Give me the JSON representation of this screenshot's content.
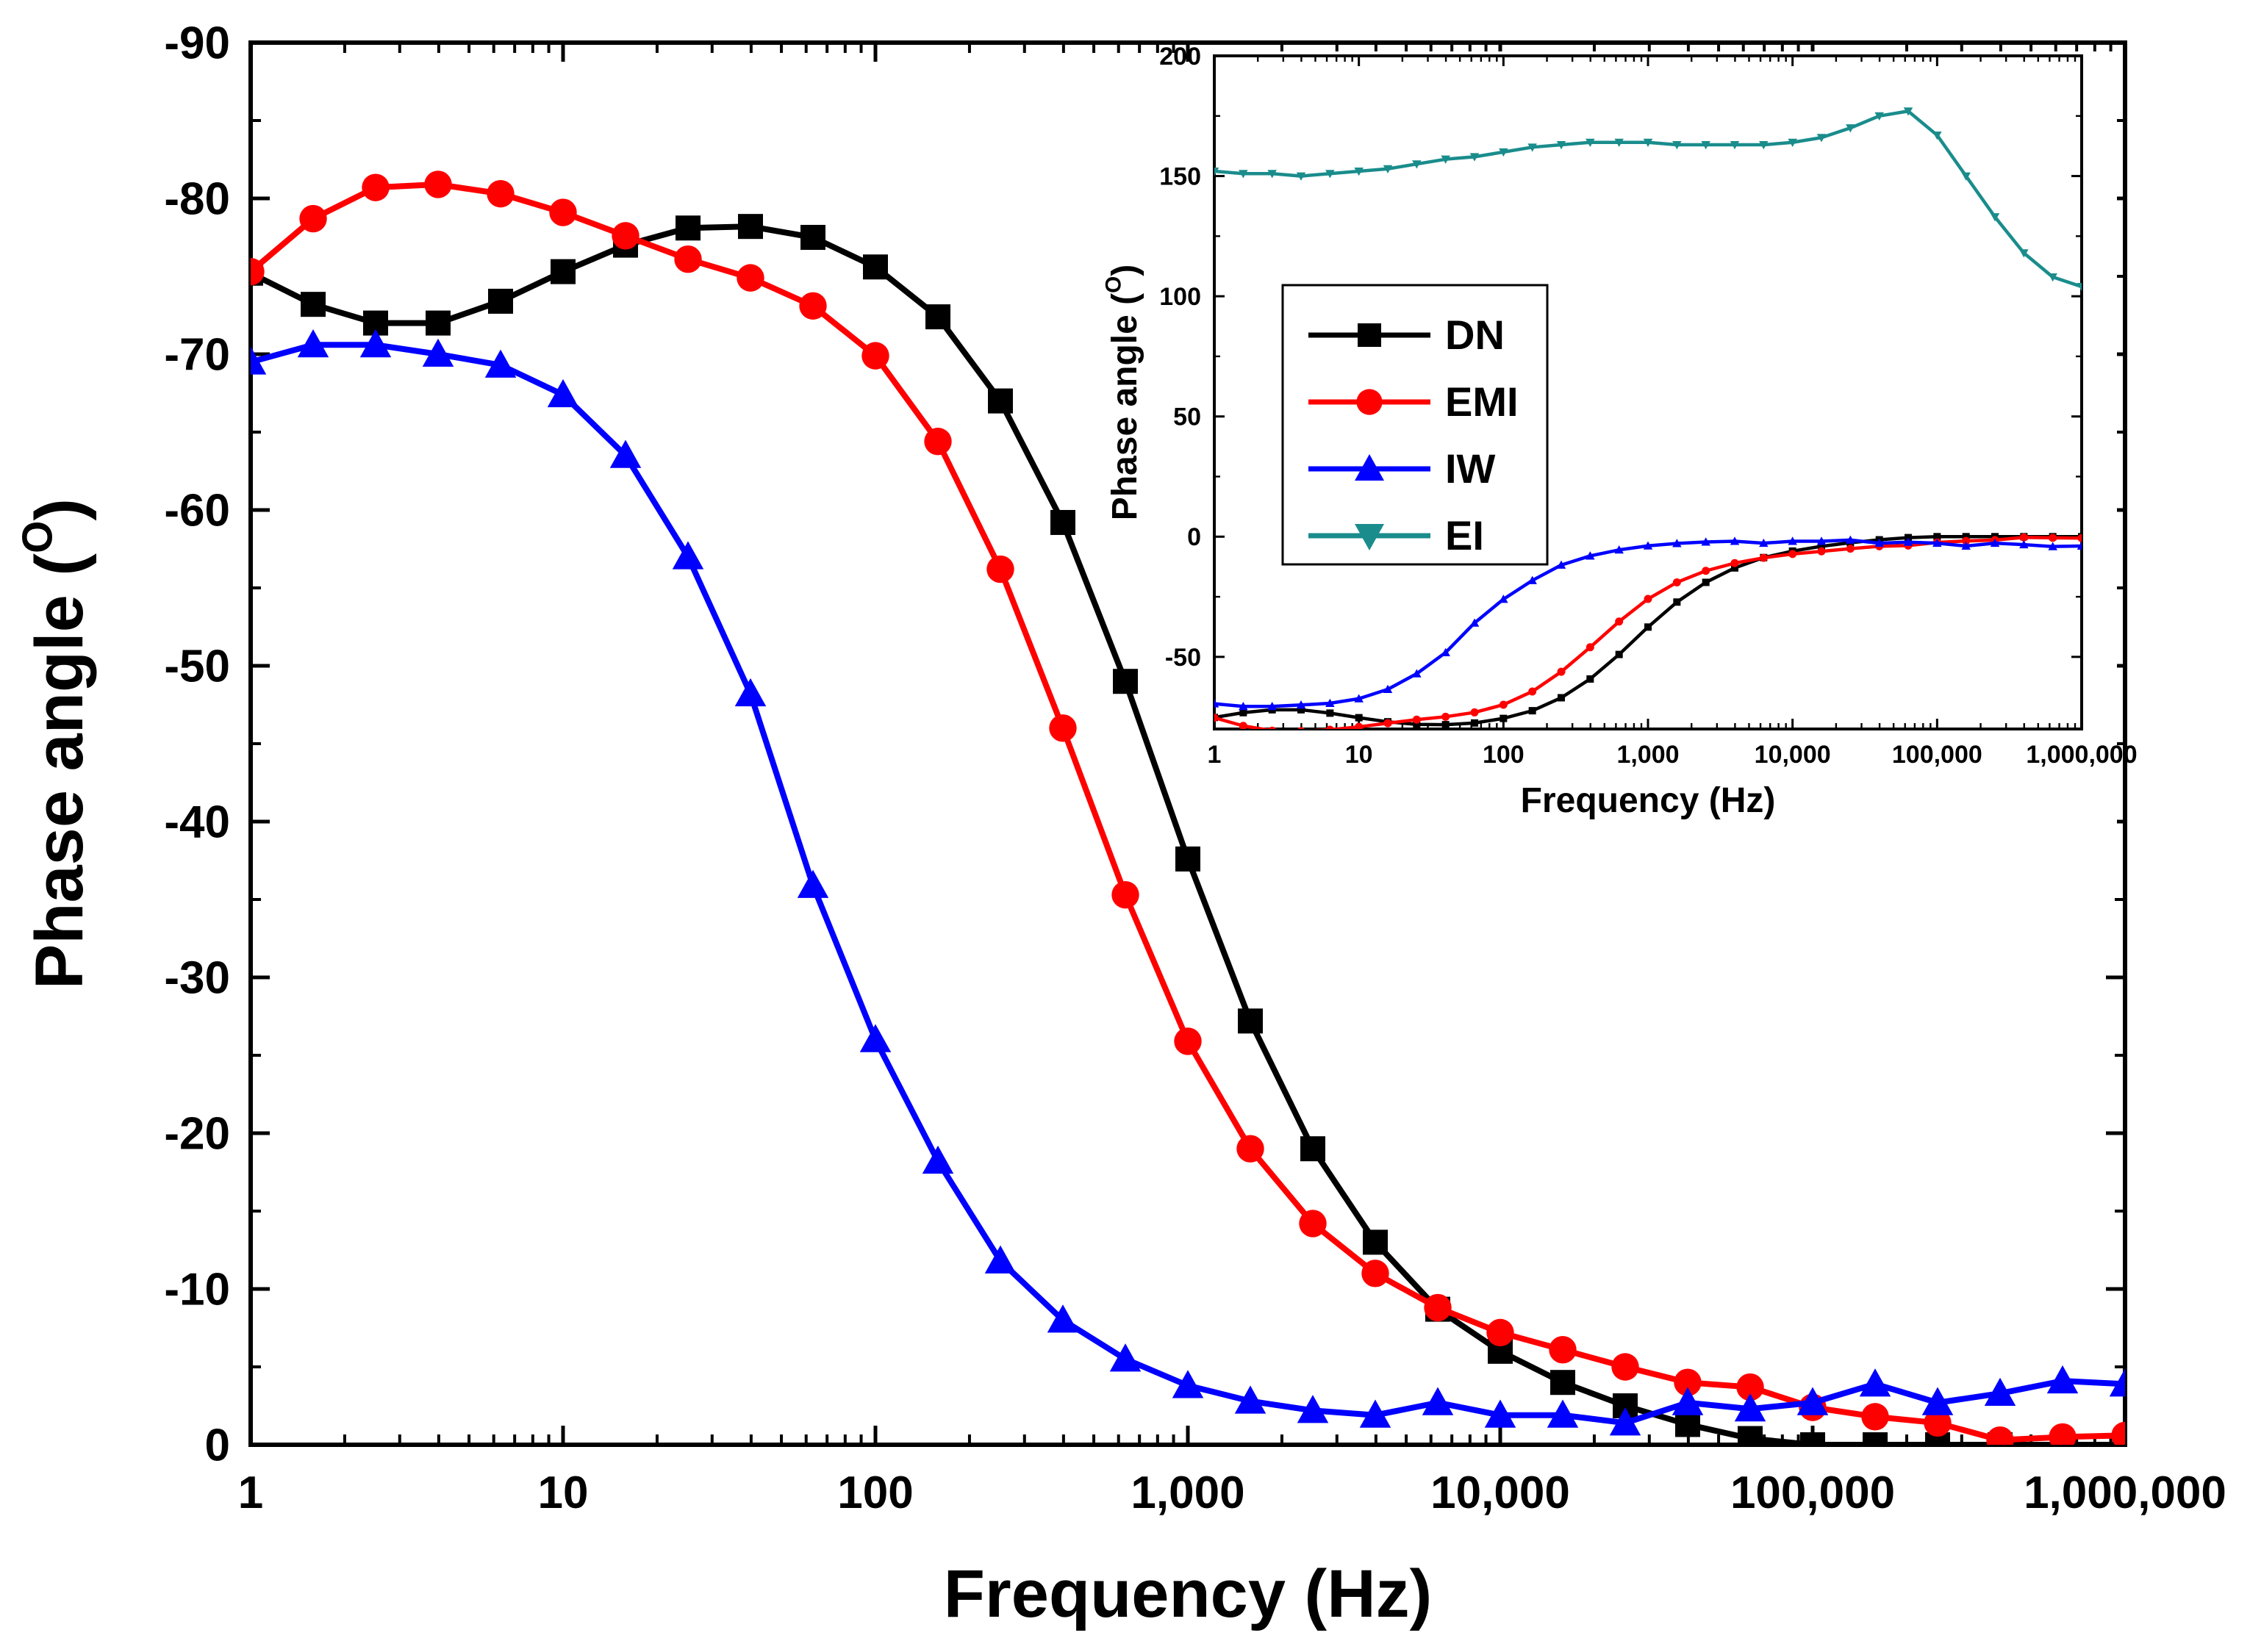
{
  "chart_data": [
    {
      "id": "main",
      "type": "line",
      "title": "",
      "xlabel": "Frequency (Hz)",
      "ylabel": "Phase angle (",
      "ylabel_sup": "O",
      "ylabel_close": ")",
      "x_scale": "log",
      "xlim": [
        1,
        1000000
      ],
      "ylim": [
        0,
        -90
      ],
      "x_ticks": [
        1,
        10,
        100,
        1000,
        10000,
        100000,
        1000000
      ],
      "x_tick_labels": [
        "1",
        "10",
        "100",
        "1,000",
        "10,000",
        "100,000",
        "1,000,000"
      ],
      "y_ticks": [
        0,
        -10,
        -20,
        -30,
        -40,
        -50,
        -60,
        -70,
        -80,
        -90
      ],
      "y_tick_labels": [
        "0",
        "-10",
        "-20",
        "-30",
        "-40",
        "-50",
        "-60",
        "-70",
        "-80",
        "-90"
      ],
      "x": [
        1,
        1.585,
        2.512,
        3.981,
        6.31,
        10,
        15.85,
        25.12,
        39.81,
        63.1,
        100,
        158.5,
        251.2,
        398.1,
        631,
        1000,
        1585,
        2512,
        3981,
        6310,
        10000,
        15850,
        25120,
        39810,
        63100,
        100000,
        158500,
        251200,
        398100,
        631000,
        1000000
      ],
      "series": [
        {
          "name": "DN",
          "color": "#000000",
          "marker": "square",
          "values": [
            -75.2,
            -73.2,
            -72.0,
            -72.0,
            -73.4,
            -75.3,
            -77.0,
            -78.1,
            -78.2,
            -77.5,
            -75.6,
            -72.4,
            -67.0,
            -59.2,
            -49.0,
            -37.6,
            -27.2,
            -19.0,
            -13.0,
            -8.7,
            -6.0,
            -4.0,
            -2.5,
            -1.3,
            -0.4,
            0.0,
            0.0,
            0.0,
            0.0,
            0.0,
            0.0
          ]
        },
        {
          "name": "EMI",
          "color": "#ff0000",
          "marker": "circle",
          "values": [
            -75.3,
            -78.7,
            -80.7,
            -80.9,
            -80.3,
            -79.1,
            -77.6,
            -76.1,
            -74.9,
            -73.1,
            -69.9,
            -64.4,
            -56.2,
            -46.0,
            -35.3,
            -25.9,
            -19.0,
            -14.2,
            -11.0,
            -8.8,
            -7.2,
            -6.1,
            -5.0,
            -4.0,
            -3.7,
            -2.4,
            -1.8,
            -1.4,
            -0.3,
            -0.5,
            -0.6
          ]
        },
        {
          "name": "IW",
          "color": "#0000ff",
          "marker": "triangle-up",
          "values": [
            -69.5,
            -70.6,
            -70.6,
            -70.0,
            -69.3,
            -67.4,
            -63.5,
            -57.0,
            -48.2,
            -35.9,
            -26.0,
            -18.2,
            -11.8,
            -8.0,
            -5.5,
            -3.8,
            -2.8,
            -2.2,
            -1.9,
            -2.7,
            -1.9,
            -1.9,
            -1.4,
            -2.7,
            -2.3,
            -2.7,
            -3.9,
            -2.7,
            -3.3,
            -4.1,
            -3.9
          ]
        }
      ]
    },
    {
      "id": "inset",
      "type": "line",
      "title": "",
      "xlabel": "Frequency (Hz)",
      "ylabel": "Phase angle (",
      "ylabel_sup": "O",
      "ylabel_close": ")",
      "x_scale": "log",
      "xlim": [
        1,
        1000000
      ],
      "ylim": [
        -80,
        200
      ],
      "x_ticks": [
        1,
        10,
        100,
        1000,
        10000,
        100000,
        1000000
      ],
      "x_tick_labels": [
        "1",
        "10",
        "100",
        "1,000",
        "10,000",
        "100,000",
        "1,000,000"
      ],
      "y_ticks": [
        -50,
        0,
        50,
        100,
        150,
        200
      ],
      "y_tick_labels": [
        "-50",
        "0",
        "50",
        "100",
        "150",
        "200"
      ],
      "legend_position": "center-left",
      "x": [
        1,
        1.585,
        2.512,
        3.981,
        6.31,
        10,
        15.85,
        25.12,
        39.81,
        63.1,
        100,
        158.5,
        251.2,
        398.1,
        631,
        1000,
        1585,
        2512,
        3981,
        6310,
        10000,
        15850,
        25120,
        39810,
        63100,
        100000,
        158500,
        251200,
        398100,
        631000,
        1000000
      ],
      "series": [
        {
          "name": "DN",
          "color": "#000000",
          "marker": "square",
          "values": [
            -75.2,
            -73.2,
            -72.0,
            -72.0,
            -73.4,
            -75.3,
            -77.0,
            -78.1,
            -78.2,
            -77.5,
            -75.6,
            -72.4,
            -67.0,
            -59.2,
            -49.0,
            -37.6,
            -27.2,
            -19.0,
            -13.0,
            -8.7,
            -6.0,
            -4.0,
            -2.5,
            -1.3,
            -0.4,
            0.0,
            0.0,
            0.0,
            0.0,
            0.0,
            0.0
          ]
        },
        {
          "name": "EMI",
          "color": "#ff0000",
          "marker": "circle",
          "values": [
            -75.3,
            -78.7,
            -80.7,
            -80.9,
            -80.3,
            -79.1,
            -77.6,
            -76.1,
            -74.9,
            -73.1,
            -69.9,
            -64.4,
            -56.2,
            -46.0,
            -35.3,
            -25.9,
            -19.0,
            -14.2,
            -11.0,
            -8.8,
            -7.2,
            -6.1,
            -5.0,
            -4.0,
            -3.7,
            -2.4,
            -1.8,
            -1.4,
            -0.3,
            -0.5,
            -0.6
          ]
        },
        {
          "name": "IW",
          "color": "#0000ff",
          "marker": "triangle-up",
          "values": [
            -69.5,
            -70.6,
            -70.6,
            -70.0,
            -69.3,
            -67.4,
            -63.5,
            -57.0,
            -48.2,
            -35.9,
            -26.0,
            -18.2,
            -11.8,
            -8.0,
            -5.5,
            -3.8,
            -2.8,
            -2.2,
            -1.9,
            -2.7,
            -1.9,
            -1.9,
            -1.4,
            -2.7,
            -2.3,
            -2.7,
            -3.9,
            -2.7,
            -3.3,
            -4.1,
            -3.9
          ]
        },
        {
          "name": "EI",
          "color": "#1a8c8c",
          "marker": "triangle-down",
          "values": [
            152,
            151,
            151,
            150,
            151,
            152,
            153,
            155,
            157,
            158,
            160,
            162,
            163,
            164,
            164,
            164,
            163,
            163,
            163,
            163,
            164,
            166,
            170,
            175,
            177,
            167,
            150,
            133,
            118,
            108,
            104
          ]
        }
      ]
    }
  ]
}
